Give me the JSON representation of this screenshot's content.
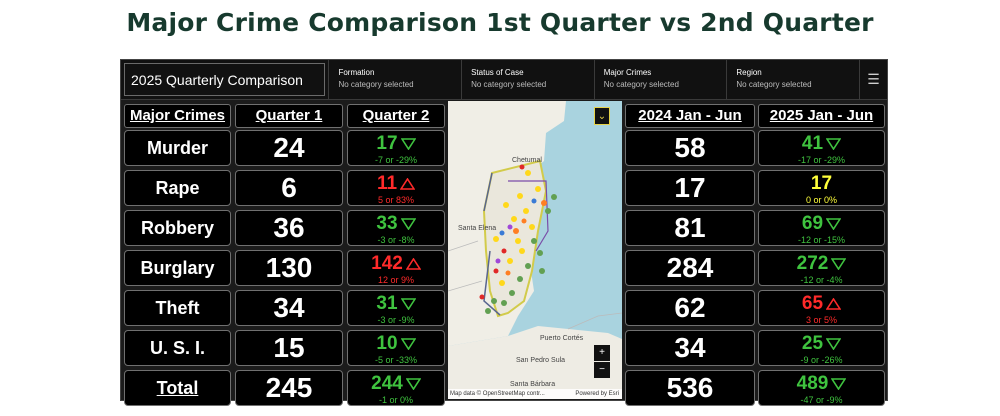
{
  "page_title": "Major Crime Comparison 1st Quarter vs 2nd Quarter",
  "dashboard": {
    "title": "2025 Quarterly Comparison",
    "filters": [
      {
        "label": "Formation",
        "value": "No category selected"
      },
      {
        "label": "Status of Case",
        "value": "No category selected"
      },
      {
        "label": "Major Crimes",
        "value": "No category selected"
      },
      {
        "label": "Region",
        "value": "No category selected"
      }
    ],
    "menu_icon": "hamburger-icon"
  },
  "headers": {
    "major_crimes": "Major Crimes",
    "q1": "Quarter 1",
    "q2": "Quarter 2",
    "y2024": "2024 Jan - Jun",
    "y2025": "2025 Jan - Jun"
  },
  "rows": [
    {
      "label": "Murder",
      "q1": "24",
      "q2": "17",
      "q2_delta": "-7 or -29%",
      "q2_trend": "down",
      "y2024": "58",
      "y2025": "41",
      "y2025_delta": "-17 or -29%",
      "y2025_trend": "down"
    },
    {
      "label": "Rape",
      "q1": "6",
      "q2": "11",
      "q2_delta": "5 or 83%",
      "q2_trend": "up",
      "y2024": "17",
      "y2025": "17",
      "y2025_delta": "0 or 0%",
      "y2025_trend": "flat"
    },
    {
      "label": "Robbery",
      "q1": "36",
      "q2": "33",
      "q2_delta": "-3 or -8%",
      "q2_trend": "down",
      "y2024": "81",
      "y2025": "69",
      "y2025_delta": "-12 or -15%",
      "y2025_trend": "down"
    },
    {
      "label": "Burglary",
      "q1": "130",
      "q2": "142",
      "q2_delta": "12 or 9%",
      "q2_trend": "up",
      "y2024": "284",
      "y2025": "272",
      "y2025_delta": "-12 or -4%",
      "y2025_trend": "down"
    },
    {
      "label": "Theft",
      "q1": "34",
      "q2": "31",
      "q2_delta": "-3 or -9%",
      "q2_trend": "down",
      "y2024": "62",
      "y2025": "65",
      "y2025_delta": "3 or 5%",
      "y2025_trend": "up"
    },
    {
      "label": "U. S. I.",
      "q1": "15",
      "q2": "10",
      "q2_delta": "-5 or -33%",
      "q2_trend": "down",
      "y2024": "34",
      "y2025": "25",
      "y2025_delta": "-9 or -26%",
      "y2025_trend": "down"
    },
    {
      "label": "Total",
      "q1": "245",
      "q2": "244",
      "q2_delta": "-1 or 0%",
      "q2_trend": "down",
      "y2024": "536",
      "y2025": "489",
      "y2025_delta": "-47 or -9%",
      "y2025_trend": "down"
    }
  ],
  "map": {
    "attribution": "Map data © OpenStreetMap contr...",
    "attribution_right": "Powered by Esri",
    "zoom_in": "+",
    "zoom_out": "−",
    "collapse_icon": "chevron-double-down-icon",
    "places": [
      "Chetumal",
      "Santa Elena",
      "Puerto Cortés",
      "San Pedro Sula",
      "Santa Bárbara"
    ]
  },
  "colors": {
    "decrease": "#3fc33f",
    "increase": "#ff2a2a",
    "no_change": "#ffff3a",
    "title": "#173a2e"
  }
}
